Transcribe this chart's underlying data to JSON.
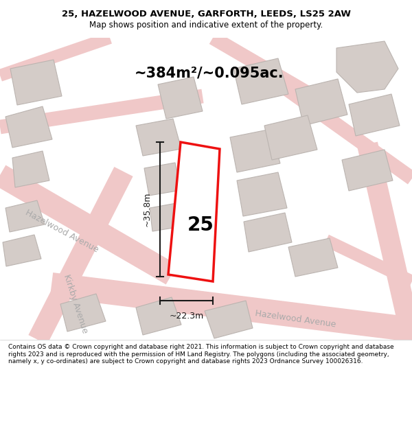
{
  "title_line1": "25, HAZELWOOD AVENUE, GARFORTH, LEEDS, LS25 2AW",
  "title_line2": "Map shows position and indicative extent of the property.",
  "area_text": "~384m²/~0.095ac.",
  "property_number": "25",
  "dim_height": "~35.8m",
  "dim_width": "~22.3m",
  "footer_text": "Contains OS data © Crown copyright and database right 2021. This information is subject to Crown copyright and database rights 2023 and is reproduced with the permission of HM Land Registry. The polygons (including the associated geometry, namely x, y co-ordinates) are subject to Crown copyright and database rights 2023 Ordnance Survey 100026316.",
  "map_bg": "#f5f0ed",
  "road_color": "#f0c8c8",
  "building_color": "#d4ccc8",
  "building_edge": "#bbb4b0",
  "plot_color": "#ee1111",
  "dim_color": "#1a1a1a",
  "street_text_color": "#aaaaaa",
  "white": "#ffffff"
}
